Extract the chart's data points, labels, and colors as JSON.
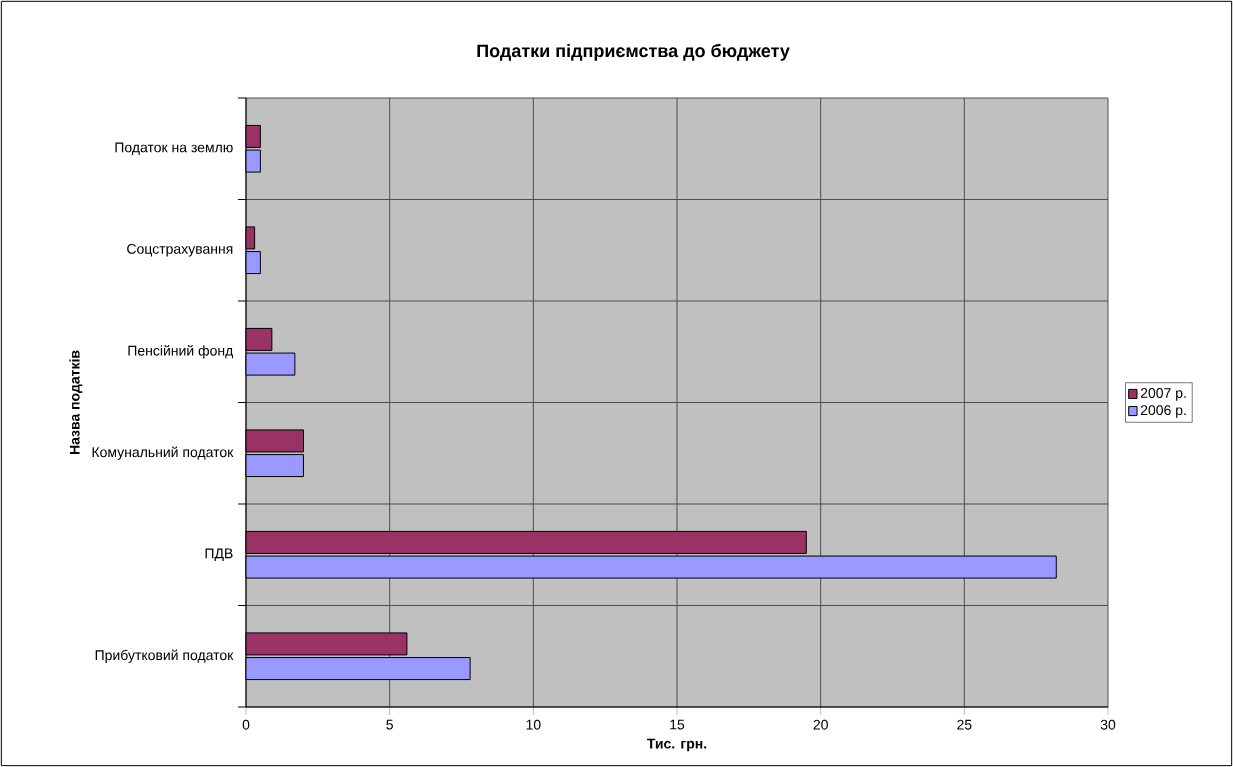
{
  "chart_data": {
    "type": "bar",
    "orientation": "horizontal",
    "title": "Податки підприємства до бюджету",
    "xlabel": "Тис. грн.",
    "ylabel": "Назва податків",
    "categories": [
      "Податок на землю",
      "Соцстрахування",
      "Пенсійний фонд",
      "Комунальний податок",
      "ПДВ",
      "Прибутковий податок"
    ],
    "series": [
      {
        "name": "2007 р.",
        "color": "#993366",
        "values": [
          0.5,
          0.3,
          0.9,
          2.0,
          19.5,
          5.6
        ]
      },
      {
        "name": "2006 р.",
        "color": "#9999ff",
        "values": [
          0.5,
          0.5,
          1.7,
          2.0,
          28.2,
          7.8
        ]
      }
    ],
    "xlim": [
      0,
      30
    ],
    "xticks": [
      0,
      5,
      10,
      15,
      20,
      25,
      30
    ],
    "grid": true,
    "legend": "right"
  }
}
